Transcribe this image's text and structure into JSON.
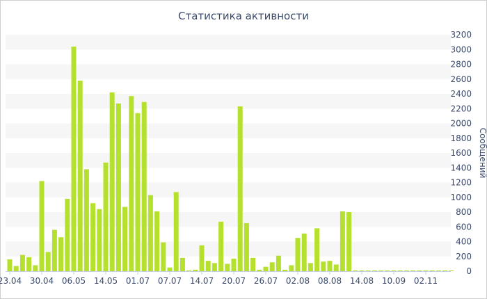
{
  "chart_data": {
    "type": "bar",
    "title": "Статистика активности",
    "ylabel": "Сообщений",
    "xlabel": "",
    "ylim": [
      0,
      3200
    ],
    "y_ticks": [
      0,
      200,
      400,
      600,
      800,
      1000,
      1200,
      1400,
      1600,
      1800,
      2000,
      2200,
      2400,
      2600,
      2800,
      3000,
      3200
    ],
    "grid": "alternating horizontal bands",
    "y_axis_side": "right",
    "bar_color": "#b5e02e",
    "x_tick_labels": [
      {
        "label": "23.04",
        "index": 0
      },
      {
        "label": "30.04",
        "index": 5
      },
      {
        "label": "06.05",
        "index": 10
      },
      {
        "label": "14.05",
        "index": 15
      },
      {
        "label": "01.07",
        "index": 20
      },
      {
        "label": "07.07",
        "index": 25
      },
      {
        "label": "14.07",
        "index": 30
      },
      {
        "label": "20.07",
        "index": 35
      },
      {
        "label": "26.07",
        "index": 40
      },
      {
        "label": "02.08",
        "index": 45
      },
      {
        "label": "08.08",
        "index": 50
      },
      {
        "label": "14.08",
        "index": 55
      },
      {
        "label": "10.09",
        "index": 60
      },
      {
        "label": "02.11",
        "index": 65
      }
    ],
    "values": [
      160,
      70,
      220,
      190,
      80,
      1220,
      260,
      560,
      460,
      980,
      3040,
      2580,
      1380,
      920,
      840,
      1470,
      2420,
      2270,
      870,
      2370,
      2140,
      2290,
      1030,
      810,
      390,
      50,
      1070,
      180,
      10,
      20,
      350,
      140,
      110,
      670,
      100,
      170,
      2230,
      650,
      180,
      20,
      60,
      120,
      210,
      20,
      80,
      450,
      510,
      110,
      580,
      130,
      140,
      90,
      810,
      800,
      10,
      10,
      10,
      10,
      10,
      10,
      10,
      10,
      10,
      10,
      10,
      10,
      10,
      10,
      10,
      10
    ]
  }
}
